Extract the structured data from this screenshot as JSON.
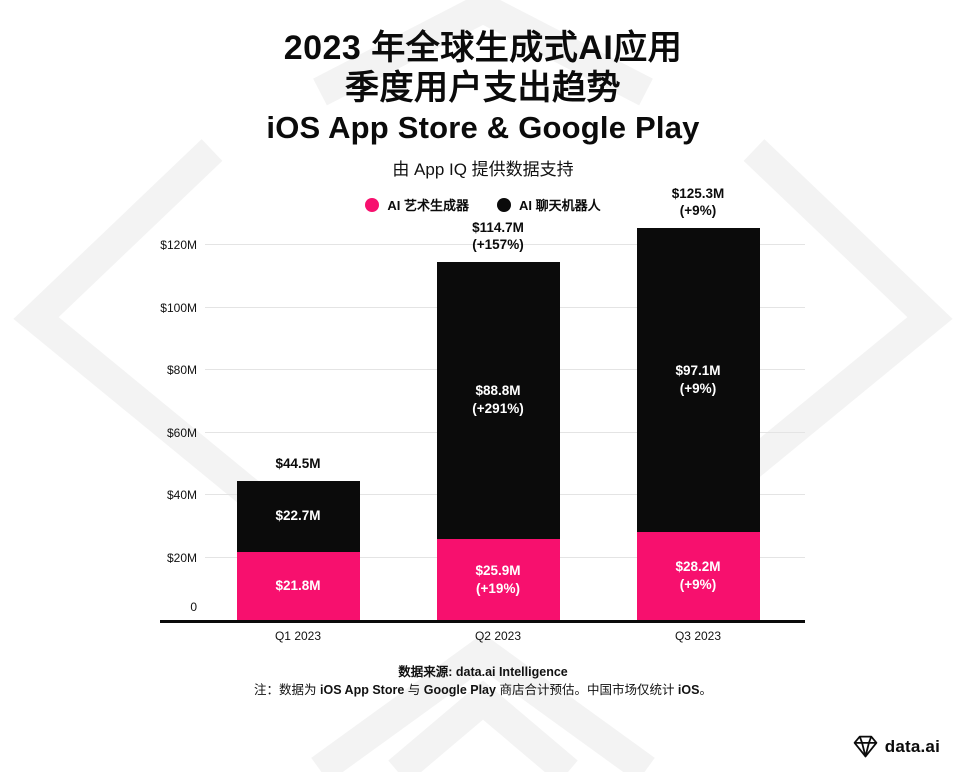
{
  "header": {
    "title_line1": "2023 年全球生成式AI应用",
    "title_line2": "季度用户支出趋势",
    "title_line3": "iOS App Store & Google Play",
    "subtitle": "由 App IQ 提供数据支持"
  },
  "legend": [
    {
      "label": "AI 艺术生成器",
      "color": "#F7106E"
    },
    {
      "label": "AI 聊天机器人",
      "color": "#0B0B0B"
    }
  ],
  "chart_data": {
    "type": "bar",
    "stacked": true,
    "title": "2023 年全球生成式AI应用 季度用户支出趋势 (iOS App Store & Google Play)",
    "unit": "USD millions",
    "categories": [
      "Q1 2023",
      "Q2 2023",
      "Q3 2023"
    ],
    "series": [
      {
        "name": "AI 艺术生成器",
        "key": "ai-art-generator",
        "color": "#F7106E",
        "values": [
          21.8,
          25.9,
          28.2
        ],
        "value_labels": [
          [
            "$21.8M"
          ],
          [
            "$25.9M",
            "(+19%)"
          ],
          [
            "$28.2M",
            "(+9%)"
          ]
        ]
      },
      {
        "name": "AI 聊天机器人",
        "key": "ai-chatbot",
        "color": "#0B0B0B",
        "values": [
          22.7,
          88.8,
          97.1
        ],
        "value_labels": [
          [
            "$22.7M"
          ],
          [
            "$88.8M",
            "(+291%)"
          ],
          [
            "$97.1M",
            "(+9%)"
          ]
        ]
      }
    ],
    "totals": [
      {
        "value": 44.5,
        "label_lines": [
          "$44.5M"
        ]
      },
      {
        "value": 114.7,
        "label_lines": [
          "$114.7M",
          "(+157%)"
        ]
      },
      {
        "value": 125.3,
        "label_lines": [
          "$125.3M",
          "(+9%)"
        ]
      }
    ],
    "y_axis": {
      "max": 120,
      "ticks": [
        {
          "value": 120,
          "label": "$120M"
        },
        {
          "value": 100,
          "label": "$100M"
        },
        {
          "value": 80,
          "label": "$80M"
        },
        {
          "value": 60,
          "label": "$60M"
        },
        {
          "value": 40,
          "label": "$40M"
        },
        {
          "value": 20,
          "label": "$20M"
        },
        {
          "value": 0,
          "label": "0"
        }
      ]
    },
    "grid": true,
    "legend_position": "top"
  },
  "footer": {
    "source_line": [
      {
        "text": "数据来源: ",
        "bold": true
      },
      {
        "text": "data.ai Intelligence",
        "bold": true
      }
    ],
    "note_line": [
      {
        "text": "注：数据为 ",
        "bold": false
      },
      {
        "text": "iOS App Store",
        "bold": true
      },
      {
        "text": " 与 ",
        "bold": false
      },
      {
        "text": "Google Play",
        "bold": true
      },
      {
        "text": " 商店合计预估。中国市场仅统计 ",
        "bold": false
      },
      {
        "text": "iOS",
        "bold": true
      },
      {
        "text": "。",
        "bold": false
      }
    ]
  },
  "brand": {
    "name": "data.ai"
  }
}
